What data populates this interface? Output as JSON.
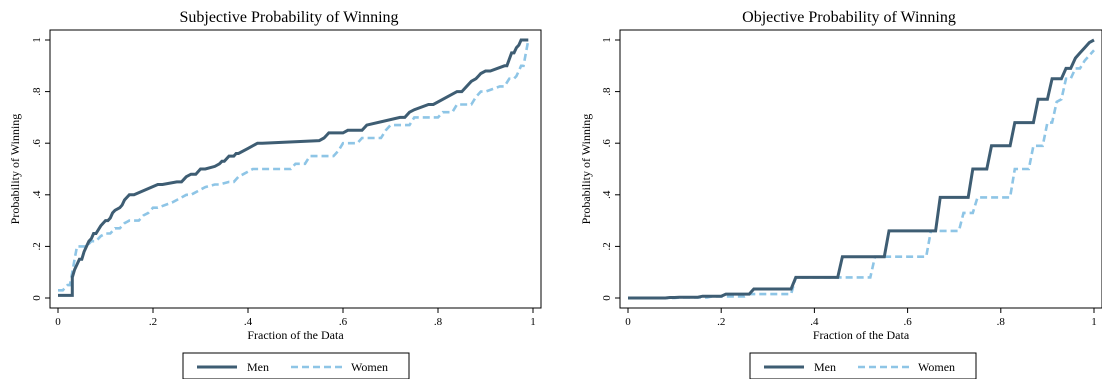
{
  "colors": {
    "men": "#3e5d73",
    "women": "#8ec5e6",
    "frame": "#000000",
    "background": "#ffffff"
  },
  "chart_data": [
    {
      "type": "line",
      "title": "Subjective Probability of Winning",
      "xlabel": "Fraction of the Data",
      "ylabel": "Probability of Winning",
      "xlim": [
        0,
        1
      ],
      "ylim": [
        0,
        1
      ],
      "xticks": [
        0,
        0.2,
        0.4,
        0.6,
        0.8,
        1
      ],
      "xtick_labels": [
        "0",
        ".2",
        ".4",
        ".6",
        ".8",
        "1"
      ],
      "yticks": [
        0,
        0.2,
        0.4,
        0.6,
        0.8,
        1
      ],
      "ytick_labels": [
        "0",
        ".2",
        ".4",
        ".6",
        ".8",
        "1"
      ],
      "grid": false,
      "legend_position": "bottom",
      "series": [
        {
          "name": "Men",
          "style": "solid",
          "x": [
            0.0,
            0.03,
            0.03,
            0.035,
            0.04,
            0.045,
            0.05,
            0.055,
            0.06,
            0.065,
            0.07,
            0.075,
            0.08,
            0.09,
            0.1,
            0.105,
            0.11,
            0.115,
            0.12,
            0.13,
            0.135,
            0.14,
            0.145,
            0.15,
            0.16,
            0.21,
            0.22,
            0.25,
            0.26,
            0.265,
            0.27,
            0.28,
            0.29,
            0.3,
            0.31,
            0.33,
            0.34,
            0.345,
            0.35,
            0.36,
            0.37,
            0.375,
            0.38,
            0.4,
            0.42,
            0.425,
            0.43,
            0.55,
            0.56,
            0.565,
            0.57,
            0.6,
            0.61,
            0.64,
            0.65,
            0.72,
            0.73,
            0.74,
            0.75,
            0.78,
            0.79,
            0.84,
            0.85,
            0.87,
            0.88,
            0.885,
            0.89,
            0.9,
            0.91,
            0.94,
            0.945,
            0.955,
            0.96,
            0.965,
            0.97,
            0.975,
            0.98,
            0.985,
            0.99
          ],
          "y": [
            0.01,
            0.01,
            0.08,
            0.11,
            0.13,
            0.15,
            0.15,
            0.18,
            0.2,
            0.22,
            0.23,
            0.25,
            0.25,
            0.28,
            0.3,
            0.3,
            0.31,
            0.33,
            0.34,
            0.35,
            0.36,
            0.38,
            0.39,
            0.4,
            0.4,
            0.44,
            0.44,
            0.45,
            0.45,
            0.46,
            0.47,
            0.48,
            0.48,
            0.5,
            0.5,
            0.51,
            0.52,
            0.53,
            0.53,
            0.55,
            0.55,
            0.56,
            0.56,
            0.58,
            0.6,
            0.6,
            0.6,
            0.61,
            0.62,
            0.63,
            0.64,
            0.64,
            0.65,
            0.65,
            0.67,
            0.7,
            0.7,
            0.72,
            0.73,
            0.75,
            0.75,
            0.8,
            0.8,
            0.84,
            0.85,
            0.86,
            0.87,
            0.88,
            0.88,
            0.9,
            0.9,
            0.95,
            0.95,
            0.97,
            0.98,
            1.0,
            1.0,
            1.0,
            1.0
          ]
        },
        {
          "name": "Women",
          "style": "dashed",
          "x": [
            0.0,
            0.01,
            0.02,
            0.025,
            0.03,
            0.035,
            0.04,
            0.06,
            0.07,
            0.08,
            0.09,
            0.1,
            0.11,
            0.12,
            0.13,
            0.14,
            0.15,
            0.17,
            0.18,
            0.19,
            0.2,
            0.21,
            0.24,
            0.25,
            0.27,
            0.28,
            0.3,
            0.31,
            0.33,
            0.34,
            0.36,
            0.37,
            0.38,
            0.39,
            0.4,
            0.41,
            0.44,
            0.45,
            0.49,
            0.5,
            0.52,
            0.53,
            0.58,
            0.59,
            0.6,
            0.63,
            0.64,
            0.68,
            0.69,
            0.7,
            0.74,
            0.75,
            0.8,
            0.81,
            0.83,
            0.84,
            0.87,
            0.88,
            0.89,
            0.9,
            0.93,
            0.94,
            0.95,
            0.96,
            0.965,
            0.97,
            0.975,
            0.98,
            0.985,
            0.99
          ],
          "y": [
            0.03,
            0.03,
            0.05,
            0.05,
            0.1,
            0.15,
            0.2,
            0.2,
            0.22,
            0.22,
            0.24,
            0.25,
            0.25,
            0.27,
            0.27,
            0.29,
            0.3,
            0.3,
            0.32,
            0.33,
            0.35,
            0.35,
            0.37,
            0.38,
            0.4,
            0.4,
            0.42,
            0.43,
            0.44,
            0.44,
            0.45,
            0.45,
            0.47,
            0.48,
            0.49,
            0.5,
            0.5,
            0.5,
            0.5,
            0.52,
            0.52,
            0.55,
            0.55,
            0.57,
            0.6,
            0.6,
            0.62,
            0.62,
            0.65,
            0.67,
            0.67,
            0.7,
            0.7,
            0.72,
            0.72,
            0.75,
            0.75,
            0.78,
            0.8,
            0.8,
            0.82,
            0.82,
            0.85,
            0.85,
            0.86,
            0.88,
            0.9,
            0.9,
            0.95,
            1.0
          ]
        }
      ],
      "legend": [
        "Men",
        "Women"
      ]
    },
    {
      "type": "line",
      "title": "Objective Probability of Winning",
      "xlabel": "Fraction of the Data",
      "ylabel": "Probability of Winning",
      "xlim": [
        0,
        1
      ],
      "ylim": [
        0,
        1
      ],
      "xticks": [
        0,
        0.2,
        0.4,
        0.6,
        0.8,
        1
      ],
      "xtick_labels": [
        "0",
        ".2",
        ".4",
        ".6",
        ".8",
        "1"
      ],
      "yticks": [
        0,
        0.2,
        0.4,
        0.6,
        0.8,
        1
      ],
      "ytick_labels": [
        "0",
        ".2",
        ".4",
        ".6",
        ".8",
        "1"
      ],
      "grid": false,
      "legend_position": "bottom",
      "series": [
        {
          "name": "Men",
          "style": "solid",
          "x": [
            0.0,
            0.08,
            0.09,
            0.1,
            0.11,
            0.15,
            0.16,
            0.2,
            0.21,
            0.26,
            0.27,
            0.35,
            0.36,
            0.45,
            0.46,
            0.55,
            0.56,
            0.66,
            0.67,
            0.73,
            0.74,
            0.77,
            0.78,
            0.82,
            0.83,
            0.87,
            0.88,
            0.9,
            0.91,
            0.93,
            0.94,
            0.95,
            0.96,
            0.97,
            0.98,
            0.99,
            1.0
          ],
          "y": [
            0.0,
            0.0,
            0.002,
            0.002,
            0.003,
            0.003,
            0.007,
            0.007,
            0.015,
            0.015,
            0.035,
            0.035,
            0.08,
            0.08,
            0.16,
            0.16,
            0.26,
            0.26,
            0.39,
            0.39,
            0.5,
            0.5,
            0.59,
            0.59,
            0.68,
            0.68,
            0.77,
            0.77,
            0.85,
            0.85,
            0.89,
            0.89,
            0.93,
            0.95,
            0.97,
            0.99,
            1.0
          ]
        },
        {
          "name": "Women",
          "style": "dashed",
          "x": [
            0.0,
            0.1,
            0.11,
            0.17,
            0.18,
            0.25,
            0.26,
            0.35,
            0.36,
            0.52,
            0.53,
            0.64,
            0.65,
            0.71,
            0.72,
            0.74,
            0.75,
            0.82,
            0.83,
            0.86,
            0.87,
            0.89,
            0.9,
            0.91,
            0.92,
            0.93,
            0.94,
            0.95,
            0.96,
            0.97,
            0.98,
            0.99,
            1.0
          ],
          "y": [
            0.0,
            0.0,
            0.002,
            0.002,
            0.006,
            0.006,
            0.015,
            0.015,
            0.08,
            0.08,
            0.16,
            0.16,
            0.26,
            0.26,
            0.33,
            0.33,
            0.39,
            0.39,
            0.5,
            0.5,
            0.59,
            0.59,
            0.68,
            0.68,
            0.76,
            0.77,
            0.85,
            0.85,
            0.89,
            0.89,
            0.92,
            0.94,
            0.96
          ]
        }
      ],
      "legend": [
        "Men",
        "Women"
      ]
    }
  ]
}
